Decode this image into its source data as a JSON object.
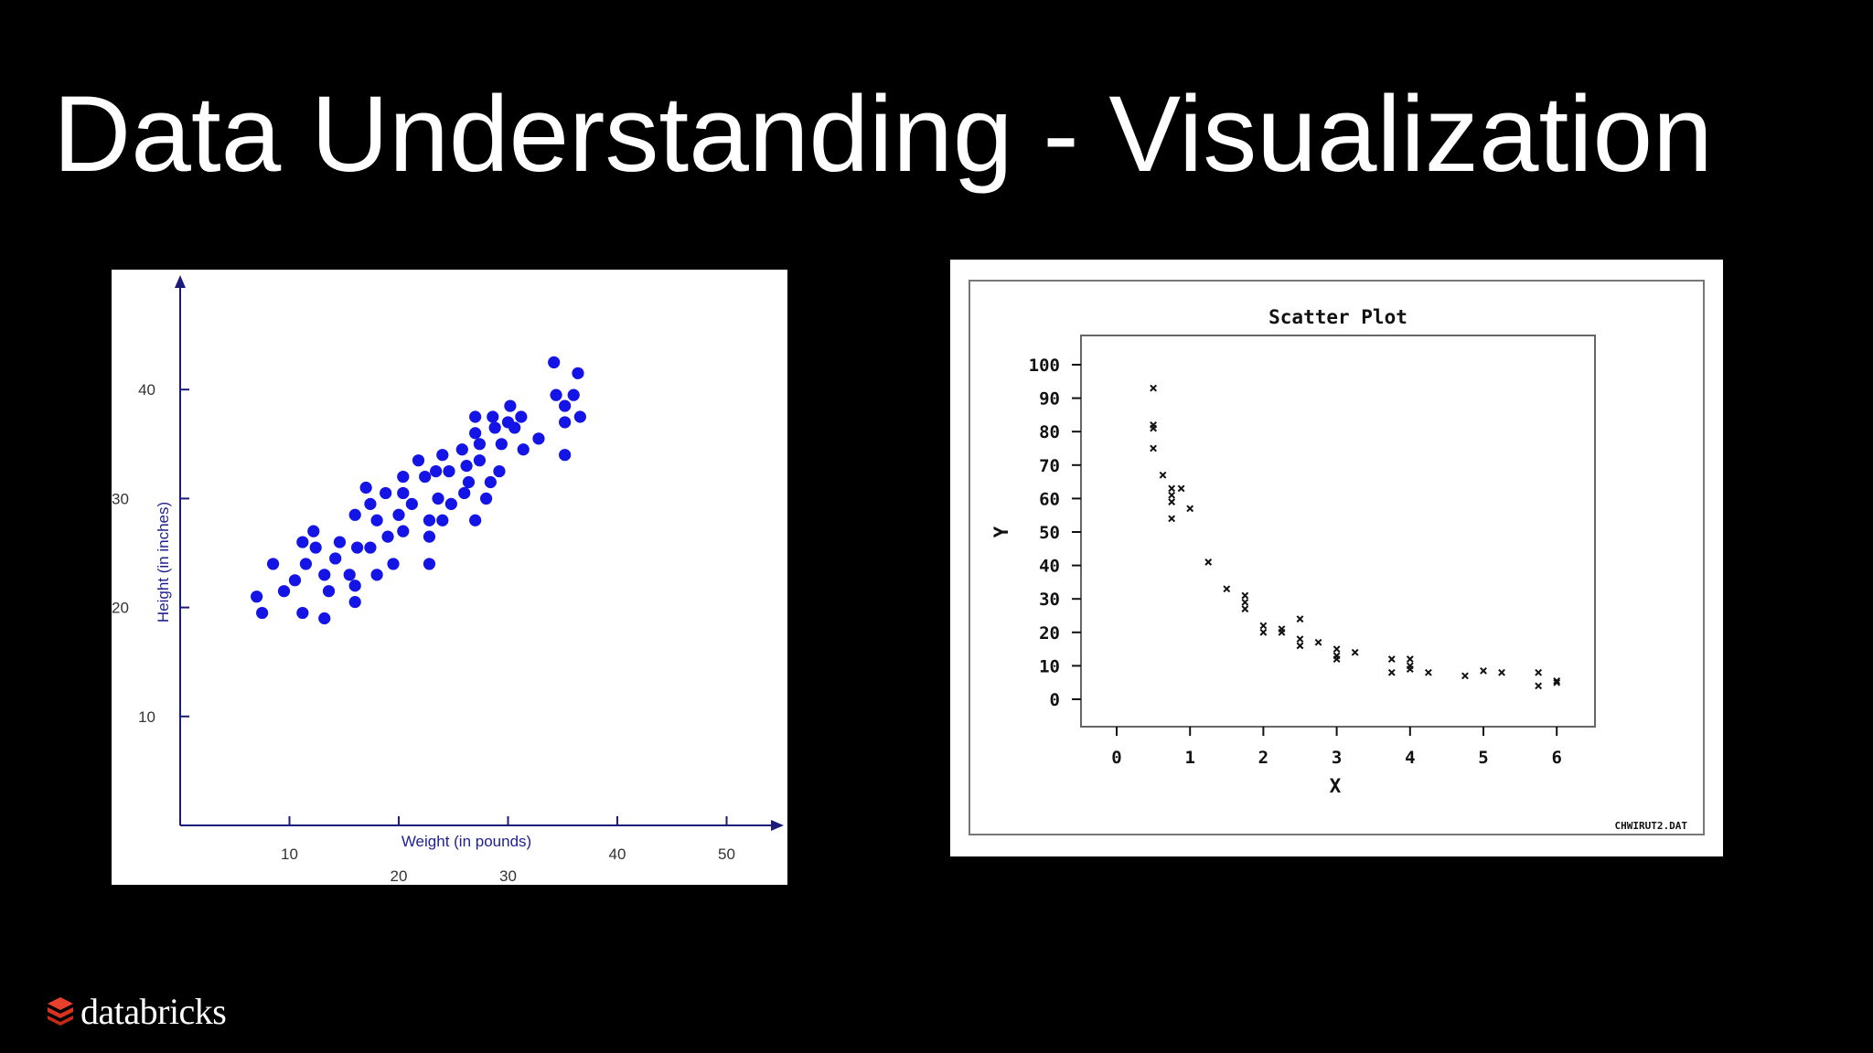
{
  "slide": {
    "title": "Data Understanding - Visualization",
    "brand": "databricks"
  },
  "chart_data": [
    {
      "type": "scatter",
      "title": "",
      "xlabel": "Weight (in pounds)",
      "ylabel": "Height (in inches)",
      "x_ticks": [
        10,
        20,
        30,
        40,
        50
      ],
      "y_ticks": [
        10,
        20,
        30,
        40
      ],
      "xlim": [
        0,
        57
      ],
      "ylim": [
        0,
        50
      ],
      "marker_color": "#1414e6",
      "axis_color": "#1b1b7a",
      "series": [
        {
          "points": [
            [
              7.0,
              21.0
            ],
            [
              7.5,
              19.5
            ],
            [
              8.5,
              24.0
            ],
            [
              9.5,
              21.5
            ],
            [
              10.5,
              22.5
            ],
            [
              11.2,
              26.0
            ],
            [
              11.5,
              24.0
            ],
            [
              11.2,
              19.5
            ],
            [
              12.2,
              27.0
            ],
            [
              12.4,
              25.5
            ],
            [
              13.2,
              23.0
            ],
            [
              13.2,
              19.0
            ],
            [
              13.6,
              21.5
            ],
            [
              14.2,
              24.5
            ],
            [
              14.6,
              26.0
            ],
            [
              15.5,
              23.0
            ],
            [
              16.0,
              20.5
            ],
            [
              16.0,
              22.0
            ],
            [
              16.2,
              25.5
            ],
            [
              16.0,
              28.5
            ],
            [
              17.0,
              31.0
            ],
            [
              17.4,
              29.5
            ],
            [
              17.4,
              25.5
            ],
            [
              18.0,
              28.0
            ],
            [
              18.0,
              23.0
            ],
            [
              18.8,
              30.5
            ],
            [
              19.0,
              26.5
            ],
            [
              19.5,
              24.0
            ],
            [
              20.0,
              28.5
            ],
            [
              20.4,
              30.5
            ],
            [
              20.4,
              32.0
            ],
            [
              20.4,
              27.0
            ],
            [
              21.2,
              29.5
            ],
            [
              21.8,
              33.5
            ],
            [
              22.4,
              32.0
            ],
            [
              22.8,
              28.0
            ],
            [
              22.8,
              26.5
            ],
            [
              22.8,
              24.0
            ],
            [
              23.4,
              32.5
            ],
            [
              23.6,
              30.0
            ],
            [
              24.0,
              34.0
            ],
            [
              24.0,
              28.0
            ],
            [
              24.6,
              32.5
            ],
            [
              24.8,
              29.5
            ],
            [
              25.8,
              34.5
            ],
            [
              26.0,
              30.5
            ],
            [
              26.2,
              33.0
            ],
            [
              26.4,
              31.5
            ],
            [
              27.0,
              37.5
            ],
            [
              27.0,
              36.0
            ],
            [
              27.0,
              28.0
            ],
            [
              27.4,
              33.5
            ],
            [
              27.4,
              35.0
            ],
            [
              28.0,
              30.0
            ],
            [
              28.4,
              31.5
            ],
            [
              28.6,
              37.5
            ],
            [
              28.8,
              36.5
            ],
            [
              29.2,
              32.5
            ],
            [
              29.4,
              35.0
            ],
            [
              30.0,
              37.0
            ],
            [
              30.2,
              38.5
            ],
            [
              30.6,
              36.5
            ],
            [
              31.2,
              37.5
            ],
            [
              31.4,
              34.5
            ],
            [
              32.8,
              35.5
            ],
            [
              34.2,
              42.5
            ],
            [
              34.4,
              39.5
            ],
            [
              35.2,
              38.5
            ],
            [
              35.2,
              37.0
            ],
            [
              35.2,
              34.0
            ],
            [
              36.0,
              39.5
            ],
            [
              36.4,
              41.5
            ],
            [
              36.6,
              37.5
            ]
          ]
        }
      ]
    },
    {
      "type": "scatter",
      "title": "Scatter Plot",
      "xlabel": "X",
      "ylabel": "Y",
      "x_ticks": [
        0,
        1,
        2,
        3,
        4,
        5,
        6
      ],
      "y_ticks": [
        0,
        10,
        20,
        30,
        40,
        50,
        60,
        70,
        80,
        90,
        100
      ],
      "xlim": [
        -0.5,
        6.5
      ],
      "ylim": [
        -8,
        107
      ],
      "grid": false,
      "footnote": "CHWIRUT2.DAT",
      "marker": "x",
      "series": [
        {
          "points": [
            [
              0.5,
              93
            ],
            [
              0.5,
              82
            ],
            [
              0.5,
              81
            ],
            [
              0.5,
              75
            ],
            [
              0.63,
              67
            ],
            [
              0.75,
              63
            ],
            [
              0.75,
              61
            ],
            [
              0.75,
              59
            ],
            [
              0.75,
              54
            ],
            [
              0.88,
              63
            ],
            [
              1.0,
              57
            ],
            [
              1.25,
              41
            ],
            [
              1.5,
              33
            ],
            [
              1.75,
              31
            ],
            [
              1.75,
              29
            ],
            [
              1.75,
              27
            ],
            [
              2.0,
              22
            ],
            [
              2.0,
              20
            ],
            [
              2.25,
              21
            ],
            [
              2.25,
              20
            ],
            [
              2.5,
              24
            ],
            [
              2.5,
              18
            ],
            [
              2.5,
              16
            ],
            [
              2.75,
              17
            ],
            [
              3.0,
              15
            ],
            [
              3.0,
              13
            ],
            [
              3.0,
              12
            ],
            [
              3.25,
              14
            ],
            [
              3.75,
              12
            ],
            [
              3.75,
              8
            ],
            [
              4.0,
              12
            ],
            [
              4.0,
              10
            ],
            [
              4.0,
              9
            ],
            [
              4.25,
              8
            ],
            [
              4.75,
              7
            ],
            [
              5.0,
              8.5
            ],
            [
              5.25,
              8
            ],
            [
              5.75,
              8
            ],
            [
              5.75,
              4
            ],
            [
              6.0,
              5.5
            ],
            [
              6.0,
              5
            ]
          ]
        }
      ]
    }
  ]
}
